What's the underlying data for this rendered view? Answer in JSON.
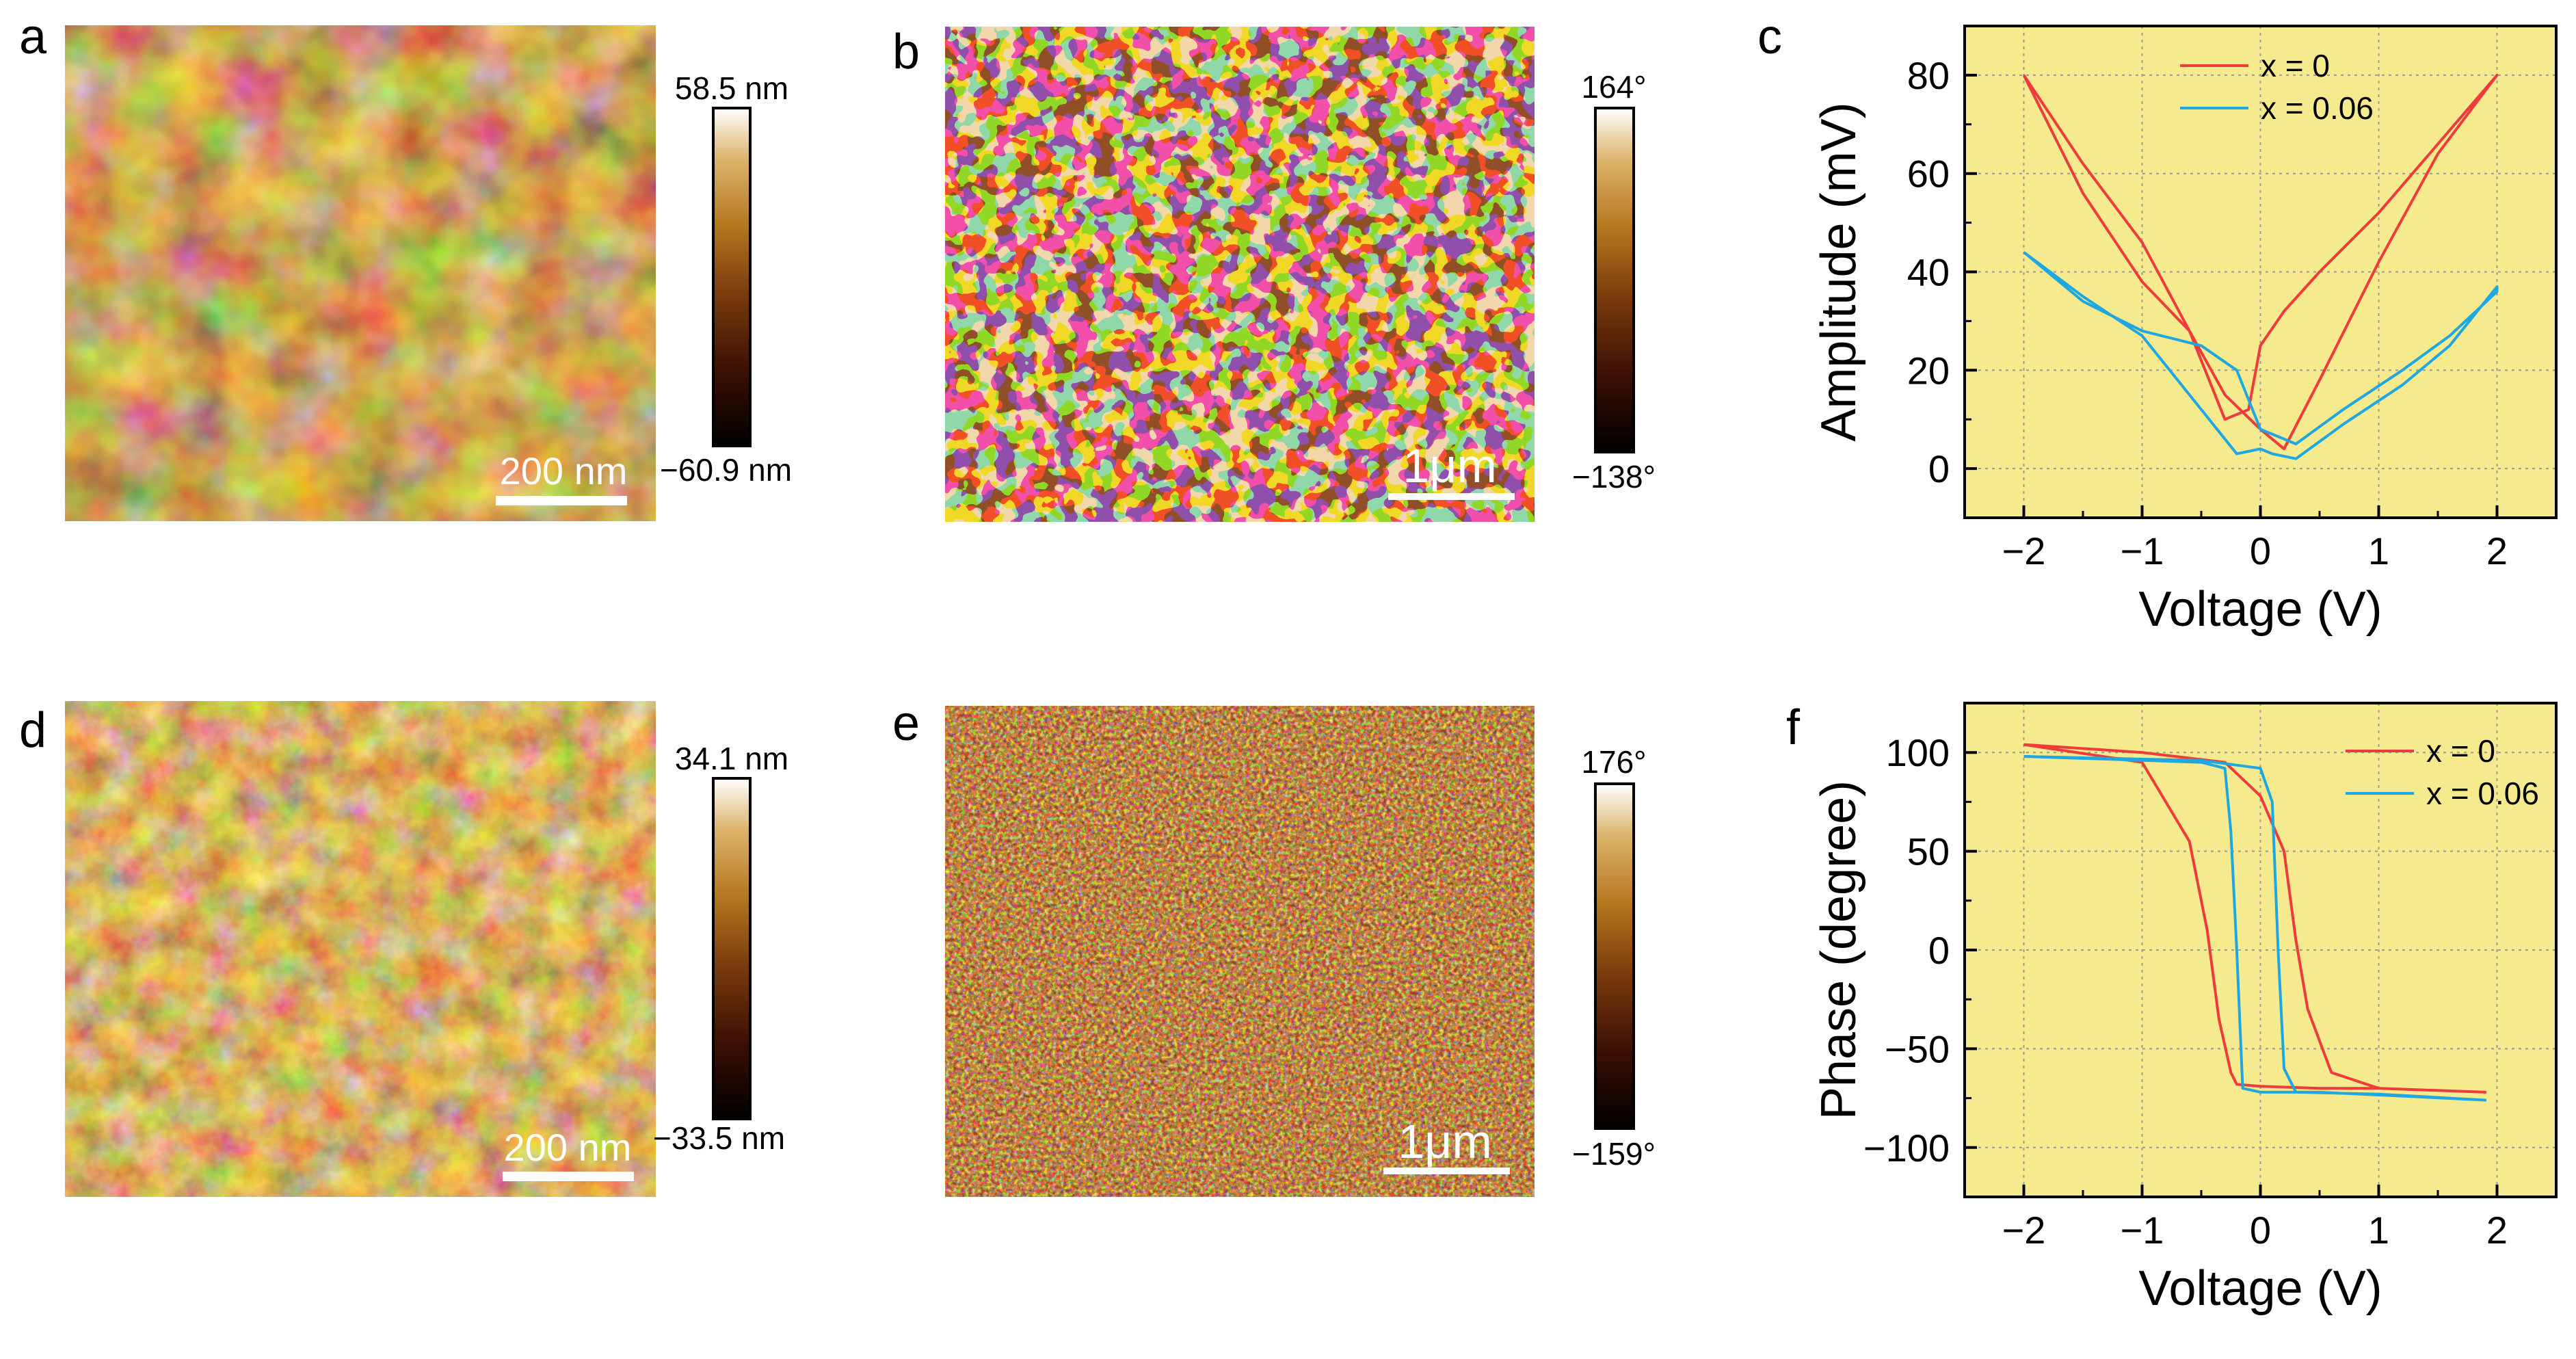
{
  "panels": {
    "a": {
      "letter": "a",
      "scale_bar": "200 nm",
      "cbar_max": "58.5 nm",
      "cbar_min": "−60.9 nm"
    },
    "b": {
      "letter": "b",
      "scale_bar": "1μm",
      "cbar_max": "164°",
      "cbar_min": "−138°"
    },
    "d": {
      "letter": "d",
      "scale_bar": "200 nm",
      "cbar_max": "34.1 nm",
      "cbar_min": "−33.5 nm"
    },
    "e": {
      "letter": "e",
      "scale_bar": "1μm",
      "cbar_max": "176°",
      "cbar_min": "−159°"
    },
    "c": {
      "letter": "c"
    },
    "f": {
      "letter": "f"
    }
  },
  "colors": {
    "plot_background": "#f6ea8e",
    "series_x0": "#ee3b3b",
    "series_x006": "#1ea7e1",
    "afm_colormap": [
      "#000000",
      "#3a0f04",
      "#7a3b0c",
      "#b5761e",
      "#dcb46c",
      "#ffffff"
    ]
  },
  "chart_data": [
    {
      "panel": "c",
      "type": "line",
      "xlabel": "Voltage (V)",
      "ylabel": "Amplitude (mV)",
      "xlim": [
        -2.5,
        2.5
      ],
      "ylim": [
        -10,
        90
      ],
      "xticks": [
        -2,
        -1,
        0,
        1,
        2
      ],
      "xtick_labels": [
        "−2",
        "−1",
        "0",
        "1",
        "2"
      ],
      "yticks": [
        0,
        20,
        40,
        60,
        80
      ],
      "ytick_labels": [
        "0",
        "20",
        "40",
        "60",
        "80"
      ],
      "grid": true,
      "legend_position": "top-center",
      "series": [
        {
          "name": "x = 0",
          "x": [
            -2.0,
            -1.5,
            -1.0,
            -0.6,
            -0.3,
            -0.1,
            0.0,
            0.2,
            0.5,
            1.0,
            1.5,
            2.0,
            2.0,
            1.5,
            1.0,
            0.5,
            0.2,
            0.0,
            -0.3,
            -0.6,
            -1.0,
            -1.5,
            -2.0
          ],
          "y": [
            80,
            62,
            46,
            28,
            10,
            12,
            25,
            32,
            40,
            52,
            66,
            80,
            80,
            64,
            42,
            18,
            4,
            8,
            15,
            28,
            38,
            56,
            80
          ]
        },
        {
          "name": "x = 0.06",
          "x": [
            -2.0,
            -1.5,
            -1.0,
            -0.5,
            -0.2,
            0.0,
            0.3,
            0.7,
            1.2,
            1.6,
            2.0,
            2.0,
            1.6,
            1.2,
            0.7,
            0.3,
            0.1,
            0.0,
            -0.2,
            -0.5,
            -1.0,
            -1.5,
            -2.0
          ],
          "y": [
            44,
            34,
            28,
            25,
            20,
            8,
            5,
            12,
            20,
            27,
            36,
            37,
            25,
            17,
            9,
            2,
            3,
            4,
            3,
            12,
            27,
            35,
            44
          ]
        }
      ]
    },
    {
      "panel": "f",
      "type": "line",
      "xlabel": "Voltage (V)",
      "ylabel": "Phase (degree)",
      "xlim": [
        -2.5,
        2.5
      ],
      "ylim": [
        -125,
        125
      ],
      "xticks": [
        -2,
        -1,
        0,
        1,
        2
      ],
      "xtick_labels": [
        "−2",
        "−1",
        "0",
        "1",
        "2"
      ],
      "yticks": [
        -100,
        -50,
        0,
        50,
        100
      ],
      "ytick_labels": [
        "−100",
        "−50",
        "0",
        "50",
        "100"
      ],
      "grid": true,
      "legend_position": "top-right",
      "series": [
        {
          "name": "x = 0",
          "x": [
            -2.0,
            -1.0,
            -0.6,
            -0.45,
            -0.35,
            -0.25,
            -0.2,
            0.0,
            0.5,
            1.0,
            1.9,
            1.9,
            1.0,
            0.6,
            0.4,
            0.3,
            0.2,
            0.0,
            -0.3,
            -1.0,
            -2.0
          ],
          "y": [
            104,
            95,
            55,
            10,
            -35,
            -62,
            -68,
            -69,
            -70,
            -70,
            -72,
            -72,
            -70,
            -62,
            -30,
            5,
            50,
            78,
            95,
            100,
            104
          ],
          "note": ""
        },
        {
          "name": "x = 0.06",
          "x": [
            -2.0,
            -0.5,
            -0.3,
            -0.25,
            -0.2,
            -0.15,
            0.0,
            0.5,
            1.9,
            1.9,
            1.0,
            0.3,
            0.2,
            0.15,
            0.1,
            0.0,
            -0.5,
            -2.0
          ],
          "y": [
            98,
            95,
            92,
            60,
            0,
            -70,
            -72,
            -72,
            -76,
            -76,
            -73,
            -72,
            -60,
            0,
            75,
            92,
            96,
            98
          ],
          "note": ""
        }
      ]
    }
  ]
}
